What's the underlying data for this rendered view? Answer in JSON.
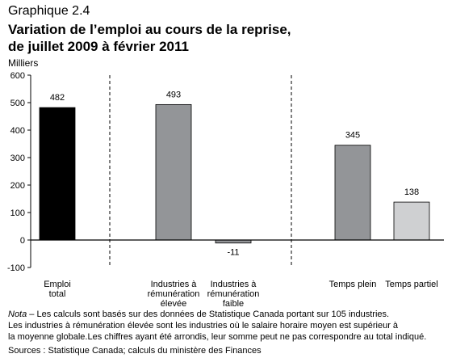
{
  "figure_label": "Graphique 2.4",
  "title_line_1": "Variation de l’emploi au cours de la reprise,",
  "title_line_2": "de juillet 2009 à février 2011",
  "unit_label": "Milliers",
  "note": {
    "lead": "Nota",
    "line_1": " – Les calculs sont basés sur des données de Statistique Canada portant sur 105 industries.",
    "line_2": "Les industries à rémunération élevée sont les industries où le salaire horaire moyen est supérieur à",
    "line_3": "la moyenne globale.Les chiffres ayant été arrondis, leur somme peut ne pas correspondre au total indiqué."
  },
  "sources": "Sources : Statistique Canada; calculs du ministère des Finances",
  "colors": {
    "total": "#000000",
    "high": "#939598",
    "low": "#939598",
    "full": "#939598",
    "part": "#cfd0d2"
  },
  "chart_data": {
    "type": "bar",
    "categories": [
      [
        "Emploi",
        "total"
      ],
      [
        "Industries à",
        "rémunération",
        "élevée"
      ],
      [
        "Industries à",
        "rémunération",
        "faible"
      ],
      [
        "Temps plein"
      ],
      [
        "Temps partiel"
      ]
    ],
    "values": [
      482,
      493,
      -11,
      345,
      138
    ],
    "data_labels": [
      "482",
      "493",
      "-11",
      "345",
      "138"
    ],
    "ylim": [
      -100,
      600
    ],
    "yticks": [
      -100,
      0,
      100,
      200,
      300,
      400,
      500,
      600
    ],
    "grid": false,
    "group_separators": "dashed vertical lines between groups"
  }
}
